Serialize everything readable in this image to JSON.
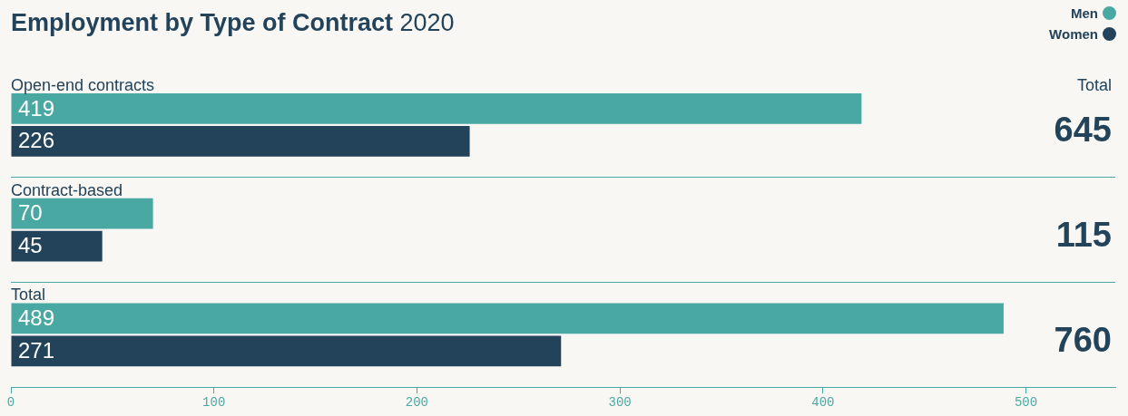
{
  "chart_data": {
    "type": "bar",
    "orientation": "horizontal",
    "title": "Employment by Type of Contract",
    "subtitle": "2020",
    "categories": [
      "Open-end contracts",
      "Contract-based",
      "Total"
    ],
    "series": [
      {
        "name": "Men",
        "color": "#4aa8a3",
        "values": [
          419,
          70,
          489
        ]
      },
      {
        "name": "Women",
        "color": "#22435a",
        "values": [
          226,
          45,
          271
        ]
      }
    ],
    "xlim": [
      0,
      544
    ],
    "xticks": [
      0,
      100,
      200,
      300,
      400,
      500
    ],
    "data_labels": true,
    "annotations": [
      "Total",
      "645",
      "115",
      "760"
    ],
    "grid": "y",
    "legend": "top right"
  }
}
